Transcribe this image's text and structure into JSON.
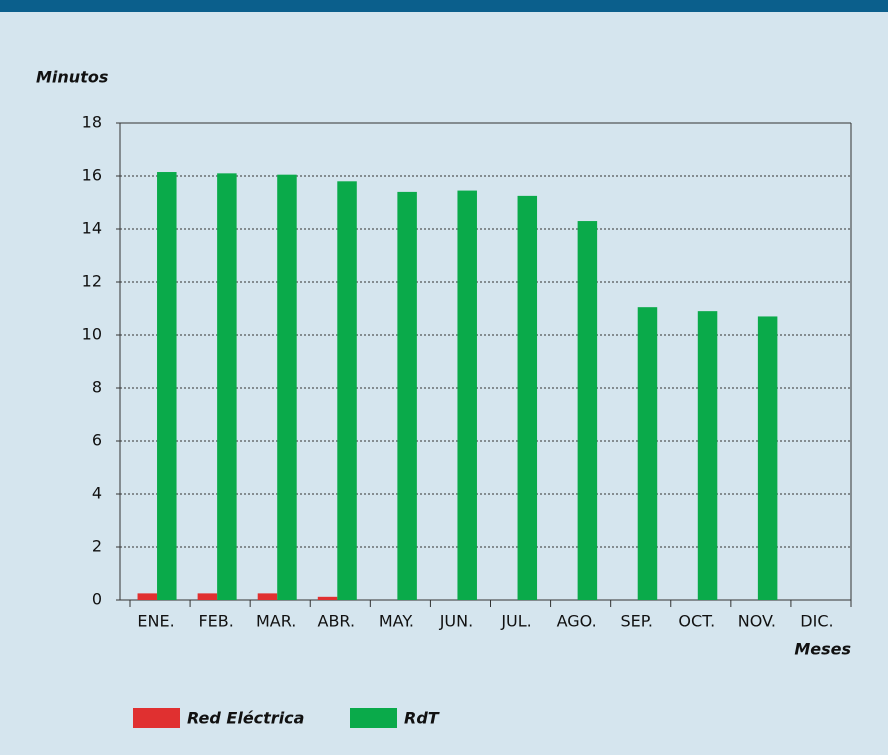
{
  "chart_data": {
    "type": "bar",
    "y_label": "Minutos",
    "x_label": "Meses",
    "categories": [
      "ENE.",
      "FEB.",
      "MAR.",
      "ABR.",
      "MAY.",
      "JUN.",
      "JUL.",
      "AGO.",
      "SEP.",
      "OCT.",
      "NOV.",
      "DIC."
    ],
    "series": [
      {
        "name": "Red Eléctrica",
        "color": "#e03030",
        "values": [
          0.25,
          0.25,
          0.25,
          0.12,
          0,
          0,
          0,
          0,
          0,
          0,
          0,
          null
        ]
      },
      {
        "name": "RdT",
        "color": "#0aaa4a",
        "values": [
          16.15,
          16.1,
          16.05,
          15.8,
          15.4,
          15.45,
          15.25,
          14.3,
          11.05,
          10.9,
          10.7,
          null
        ]
      }
    ],
    "ylim": [
      0,
      18
    ],
    "yticks": [
      0,
      2,
      4,
      6,
      8,
      10,
      12,
      14,
      16,
      18
    ],
    "grid": true,
    "legend": "bottom-left"
  }
}
